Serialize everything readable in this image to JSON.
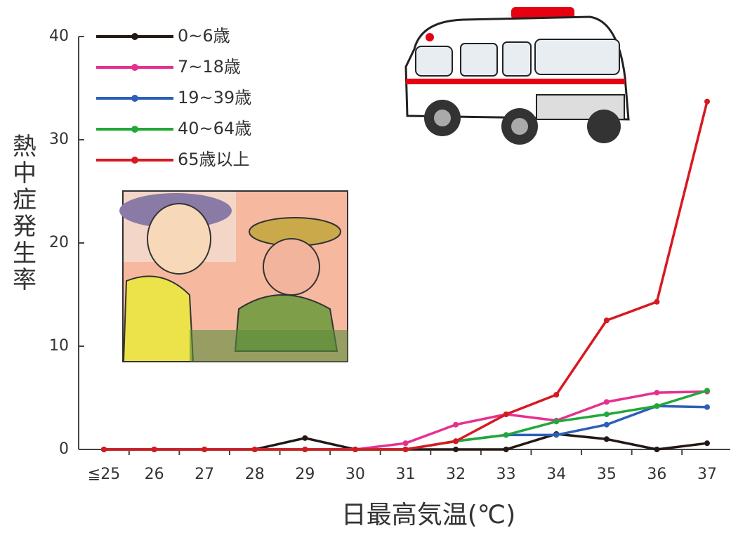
{
  "chart_data": {
    "type": "line",
    "x_label": "日最高気温(℃)",
    "y_label": "熱中症発生率",
    "categories": [
      "≦25",
      "26",
      "27",
      "28",
      "29",
      "30",
      "31",
      "32",
      "33",
      "34",
      "35",
      "36",
      "37"
    ],
    "ylim": [
      0,
      40
    ],
    "yticks": [
      0,
      10,
      20,
      30,
      40
    ],
    "series": [
      {
        "name": "0~6歳",
        "color": "#231815",
        "values": [
          0,
          0,
          0,
          0,
          1.1,
          0,
          0,
          0,
          0,
          1.5,
          1.0,
          0,
          0.6
        ]
      },
      {
        "name": "7~18歳",
        "color": "#e6308f",
        "values": [
          0,
          0,
          0,
          0,
          0,
          0,
          0.6,
          2.4,
          3.4,
          2.8,
          4.6,
          5.5,
          5.6
        ]
      },
      {
        "name": "19~39歳",
        "color": "#2c5fb8",
        "values": [
          0,
          0,
          0,
          0,
          0,
          0,
          0,
          0.8,
          1.4,
          1.4,
          2.4,
          4.2,
          4.1
        ]
      },
      {
        "name": "40~64歳",
        "color": "#22a83a",
        "values": [
          0,
          0,
          0,
          0,
          0,
          0,
          0,
          0.8,
          1.4,
          2.7,
          3.4,
          4.2,
          5.7
        ]
      },
      {
        "name": "65歳以上",
        "color": "#d71920",
        "values": [
          0,
          0,
          0,
          0,
          0,
          0,
          0,
          0.8,
          3.4,
          5.3,
          12.5,
          14.3,
          33.7
        ]
      }
    ]
  }
}
